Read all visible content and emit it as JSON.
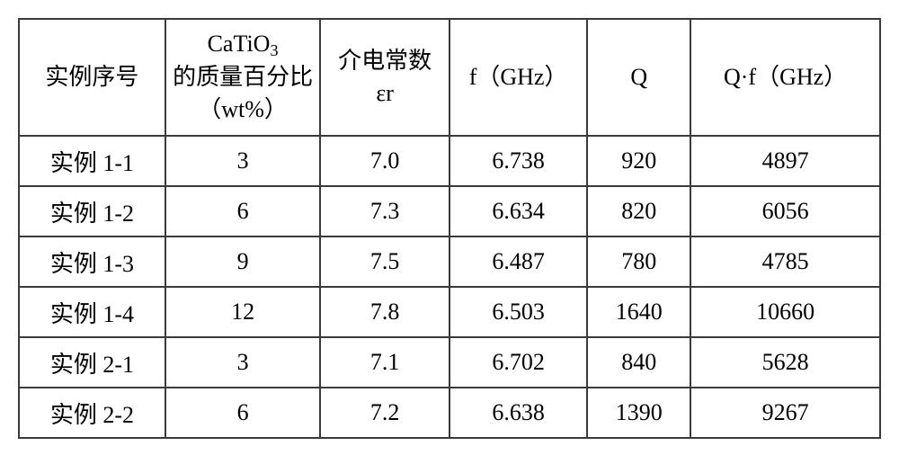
{
  "table": {
    "border_color": "#3a3a3a",
    "background_color": "#ffffff",
    "text_color": "#000000",
    "font_family": "SimSun, Times New Roman, serif",
    "header_fontsize": 26,
    "cell_fontsize": 26,
    "columns": [
      {
        "key": "col0",
        "label_plain": "实例序号",
        "width_pct": 17
      },
      {
        "key": "col1",
        "label_line1_prefix": "CaTiO",
        "label_line1_sub": "3",
        "label_line2": "的质量百分比",
        "label_line3": "（wt%）",
        "width_pct": 18
      },
      {
        "key": "col2",
        "label_line1": "介电常数",
        "label_line2": "εr",
        "width_pct": 15
      },
      {
        "key": "col3",
        "label_plain": "f（GHz）",
        "width_pct": 16
      },
      {
        "key": "col4",
        "label_plain": "Q",
        "width_pct": 12
      },
      {
        "key": "col5",
        "label_plain": "Q·f（GHz）",
        "width_pct": 22
      }
    ],
    "rows": [
      [
        "实例 1-1",
        "3",
        "7.0",
        "6.738",
        "920",
        "4897"
      ],
      [
        "实例 1-2",
        "6",
        "7.3",
        "6.634",
        "820",
        "6056"
      ],
      [
        "实例 1-3",
        "9",
        "7.5",
        "6.487",
        "780",
        "4785"
      ],
      [
        "实例 1-4",
        "12",
        "7.8",
        "6.503",
        "1640",
        "10660"
      ],
      [
        "实例 2-1",
        "3",
        "7.1",
        "6.702",
        "840",
        "5628"
      ],
      [
        "实例 2-2",
        "6",
        "7.2",
        "6.638",
        "1390",
        "9267"
      ]
    ]
  }
}
